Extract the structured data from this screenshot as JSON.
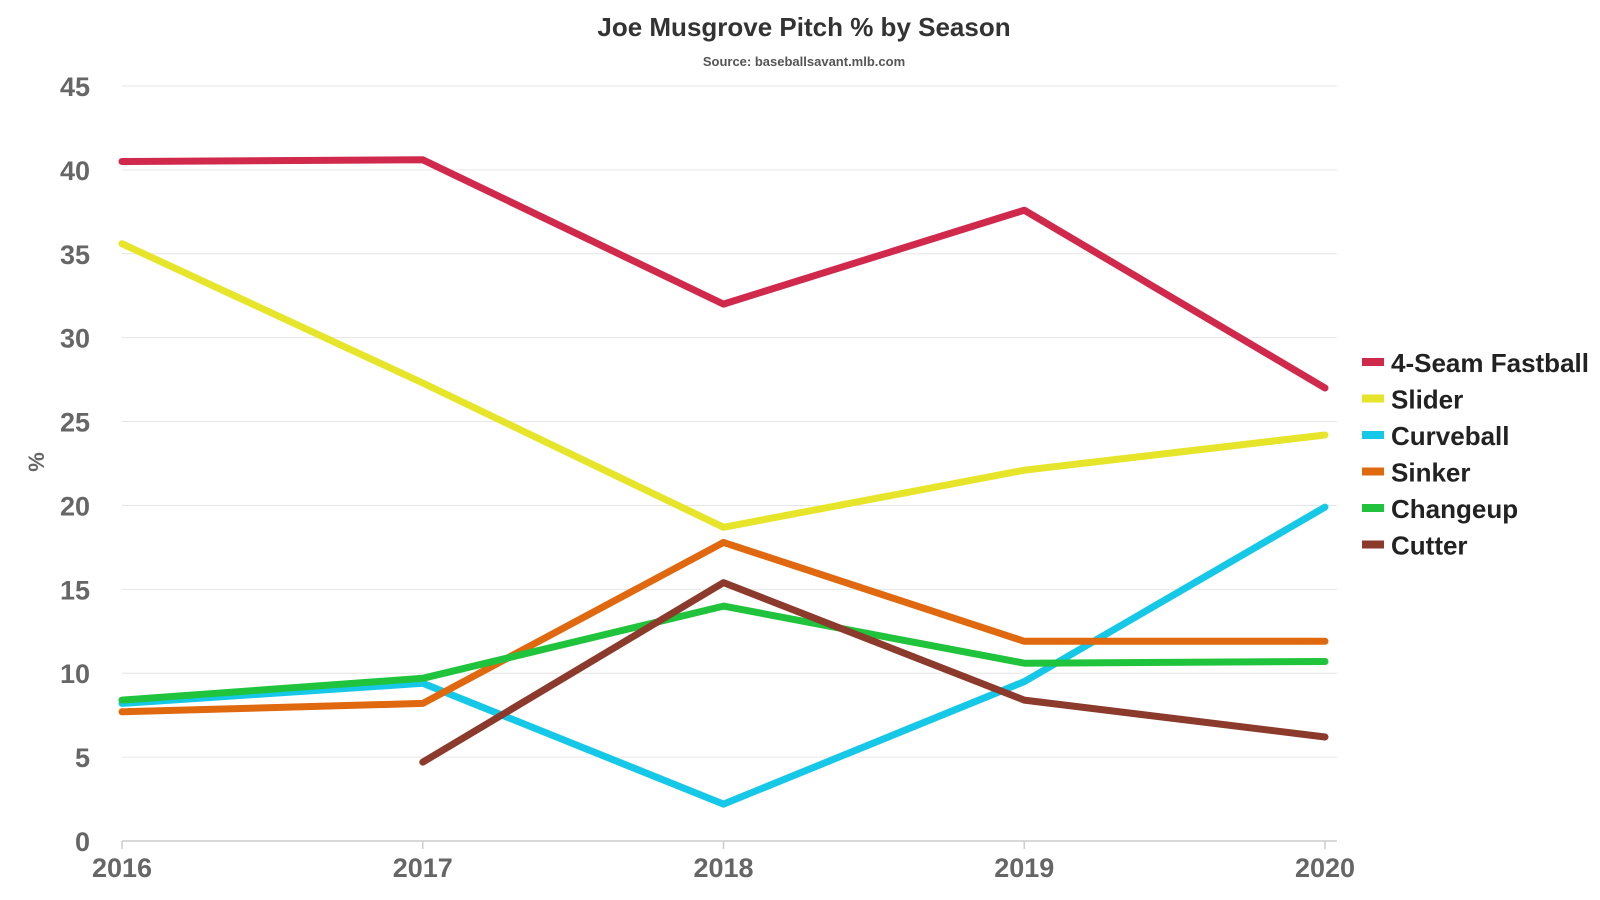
{
  "chart_data": {
    "type": "line",
    "title": "Joe Musgrove Pitch % by Season",
    "subtitle": "Source: baseballsavant.mlb.com",
    "xlabel": "",
    "ylabel": "%",
    "x": [
      "2016",
      "2017",
      "2018",
      "2019",
      "2020"
    ],
    "ylim": [
      0,
      45
    ],
    "yticks": [
      0,
      5,
      10,
      15,
      20,
      25,
      30,
      35,
      40,
      45
    ],
    "grid": true,
    "legend_position": "right",
    "series": [
      {
        "name": "4-Seam Fastball",
        "color": "#d0294b",
        "values": [
          40.5,
          40.6,
          32.0,
          37.6,
          27.0
        ]
      },
      {
        "name": "Slider",
        "color": "#e6e52a",
        "values": [
          35.6,
          27.3,
          18.7,
          22.1,
          24.2
        ]
      },
      {
        "name": "Curveball",
        "color": "#16c8e8",
        "values": [
          8.2,
          9.4,
          2.2,
          9.5,
          19.9
        ]
      },
      {
        "name": "Sinker",
        "color": "#e0680f",
        "values": [
          7.7,
          8.2,
          17.8,
          11.9,
          11.9
        ]
      },
      {
        "name": "Changeup",
        "color": "#20c33c",
        "values": [
          8.4,
          9.7,
          14.0,
          10.6,
          10.7
        ]
      },
      {
        "name": "Cutter",
        "color": "#8b3a2b",
        "values": [
          null,
          4.7,
          15.4,
          8.4,
          6.2
        ]
      }
    ]
  }
}
